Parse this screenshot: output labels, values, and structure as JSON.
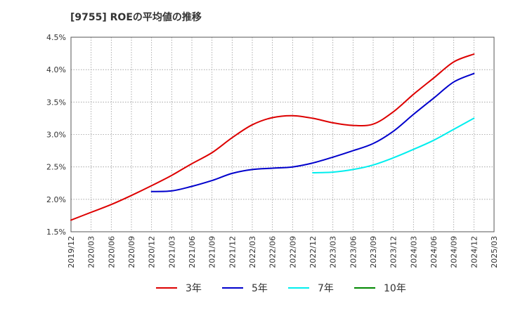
{
  "chart_data": {
    "type": "line",
    "title": "[9755]  ROEの平均値の推移",
    "xlabel": "",
    "ylabel": "",
    "ylim": [
      1.5,
      4.5
    ],
    "yticks": [
      "1.5%",
      "2.0%",
      "2.5%",
      "3.0%",
      "3.5%",
      "4.0%",
      "4.5%"
    ],
    "ytick_values": [
      1.5,
      2.0,
      2.5,
      3.0,
      3.5,
      4.0,
      4.5
    ],
    "x": [
      "2019/12",
      "2020/03",
      "2020/06",
      "2020/09",
      "2020/12",
      "2021/03",
      "2021/06",
      "2021/09",
      "2021/12",
      "2022/03",
      "2022/06",
      "2022/09",
      "2022/12",
      "2023/03",
      "2023/06",
      "2023/09",
      "2023/12",
      "2024/03",
      "2024/06",
      "2024/09",
      "2024/12",
      "2025/03"
    ],
    "grid": true,
    "legend_position": "bottom",
    "series": [
      {
        "name": "3年",
        "color": "#dd0000",
        "values": [
          1.68,
          1.8,
          1.92,
          2.06,
          2.21,
          2.37,
          2.55,
          2.72,
          2.95,
          3.15,
          3.26,
          3.29,
          3.25,
          3.18,
          3.14,
          3.16,
          3.35,
          3.62,
          3.87,
          4.12,
          4.24,
          null
        ]
      },
      {
        "name": "5年",
        "color": "#0000cc",
        "values": [
          null,
          null,
          null,
          null,
          2.12,
          2.13,
          2.2,
          2.29,
          2.4,
          2.46,
          2.48,
          2.5,
          2.56,
          2.65,
          2.75,
          2.86,
          3.05,
          3.31,
          3.56,
          3.81,
          3.94,
          null
        ]
      },
      {
        "name": "7年",
        "color": "#00eeee",
        "values": [
          null,
          null,
          null,
          null,
          null,
          null,
          null,
          null,
          null,
          null,
          null,
          null,
          2.41,
          2.42,
          2.46,
          2.53,
          2.64,
          2.77,
          2.91,
          3.08,
          3.25,
          null
        ]
      },
      {
        "name": "10年",
        "color": "#008800",
        "values": [
          null,
          null,
          null,
          null,
          null,
          null,
          null,
          null,
          null,
          null,
          null,
          null,
          null,
          null,
          null,
          null,
          null,
          null,
          null,
          null,
          null,
          null
        ]
      }
    ]
  }
}
